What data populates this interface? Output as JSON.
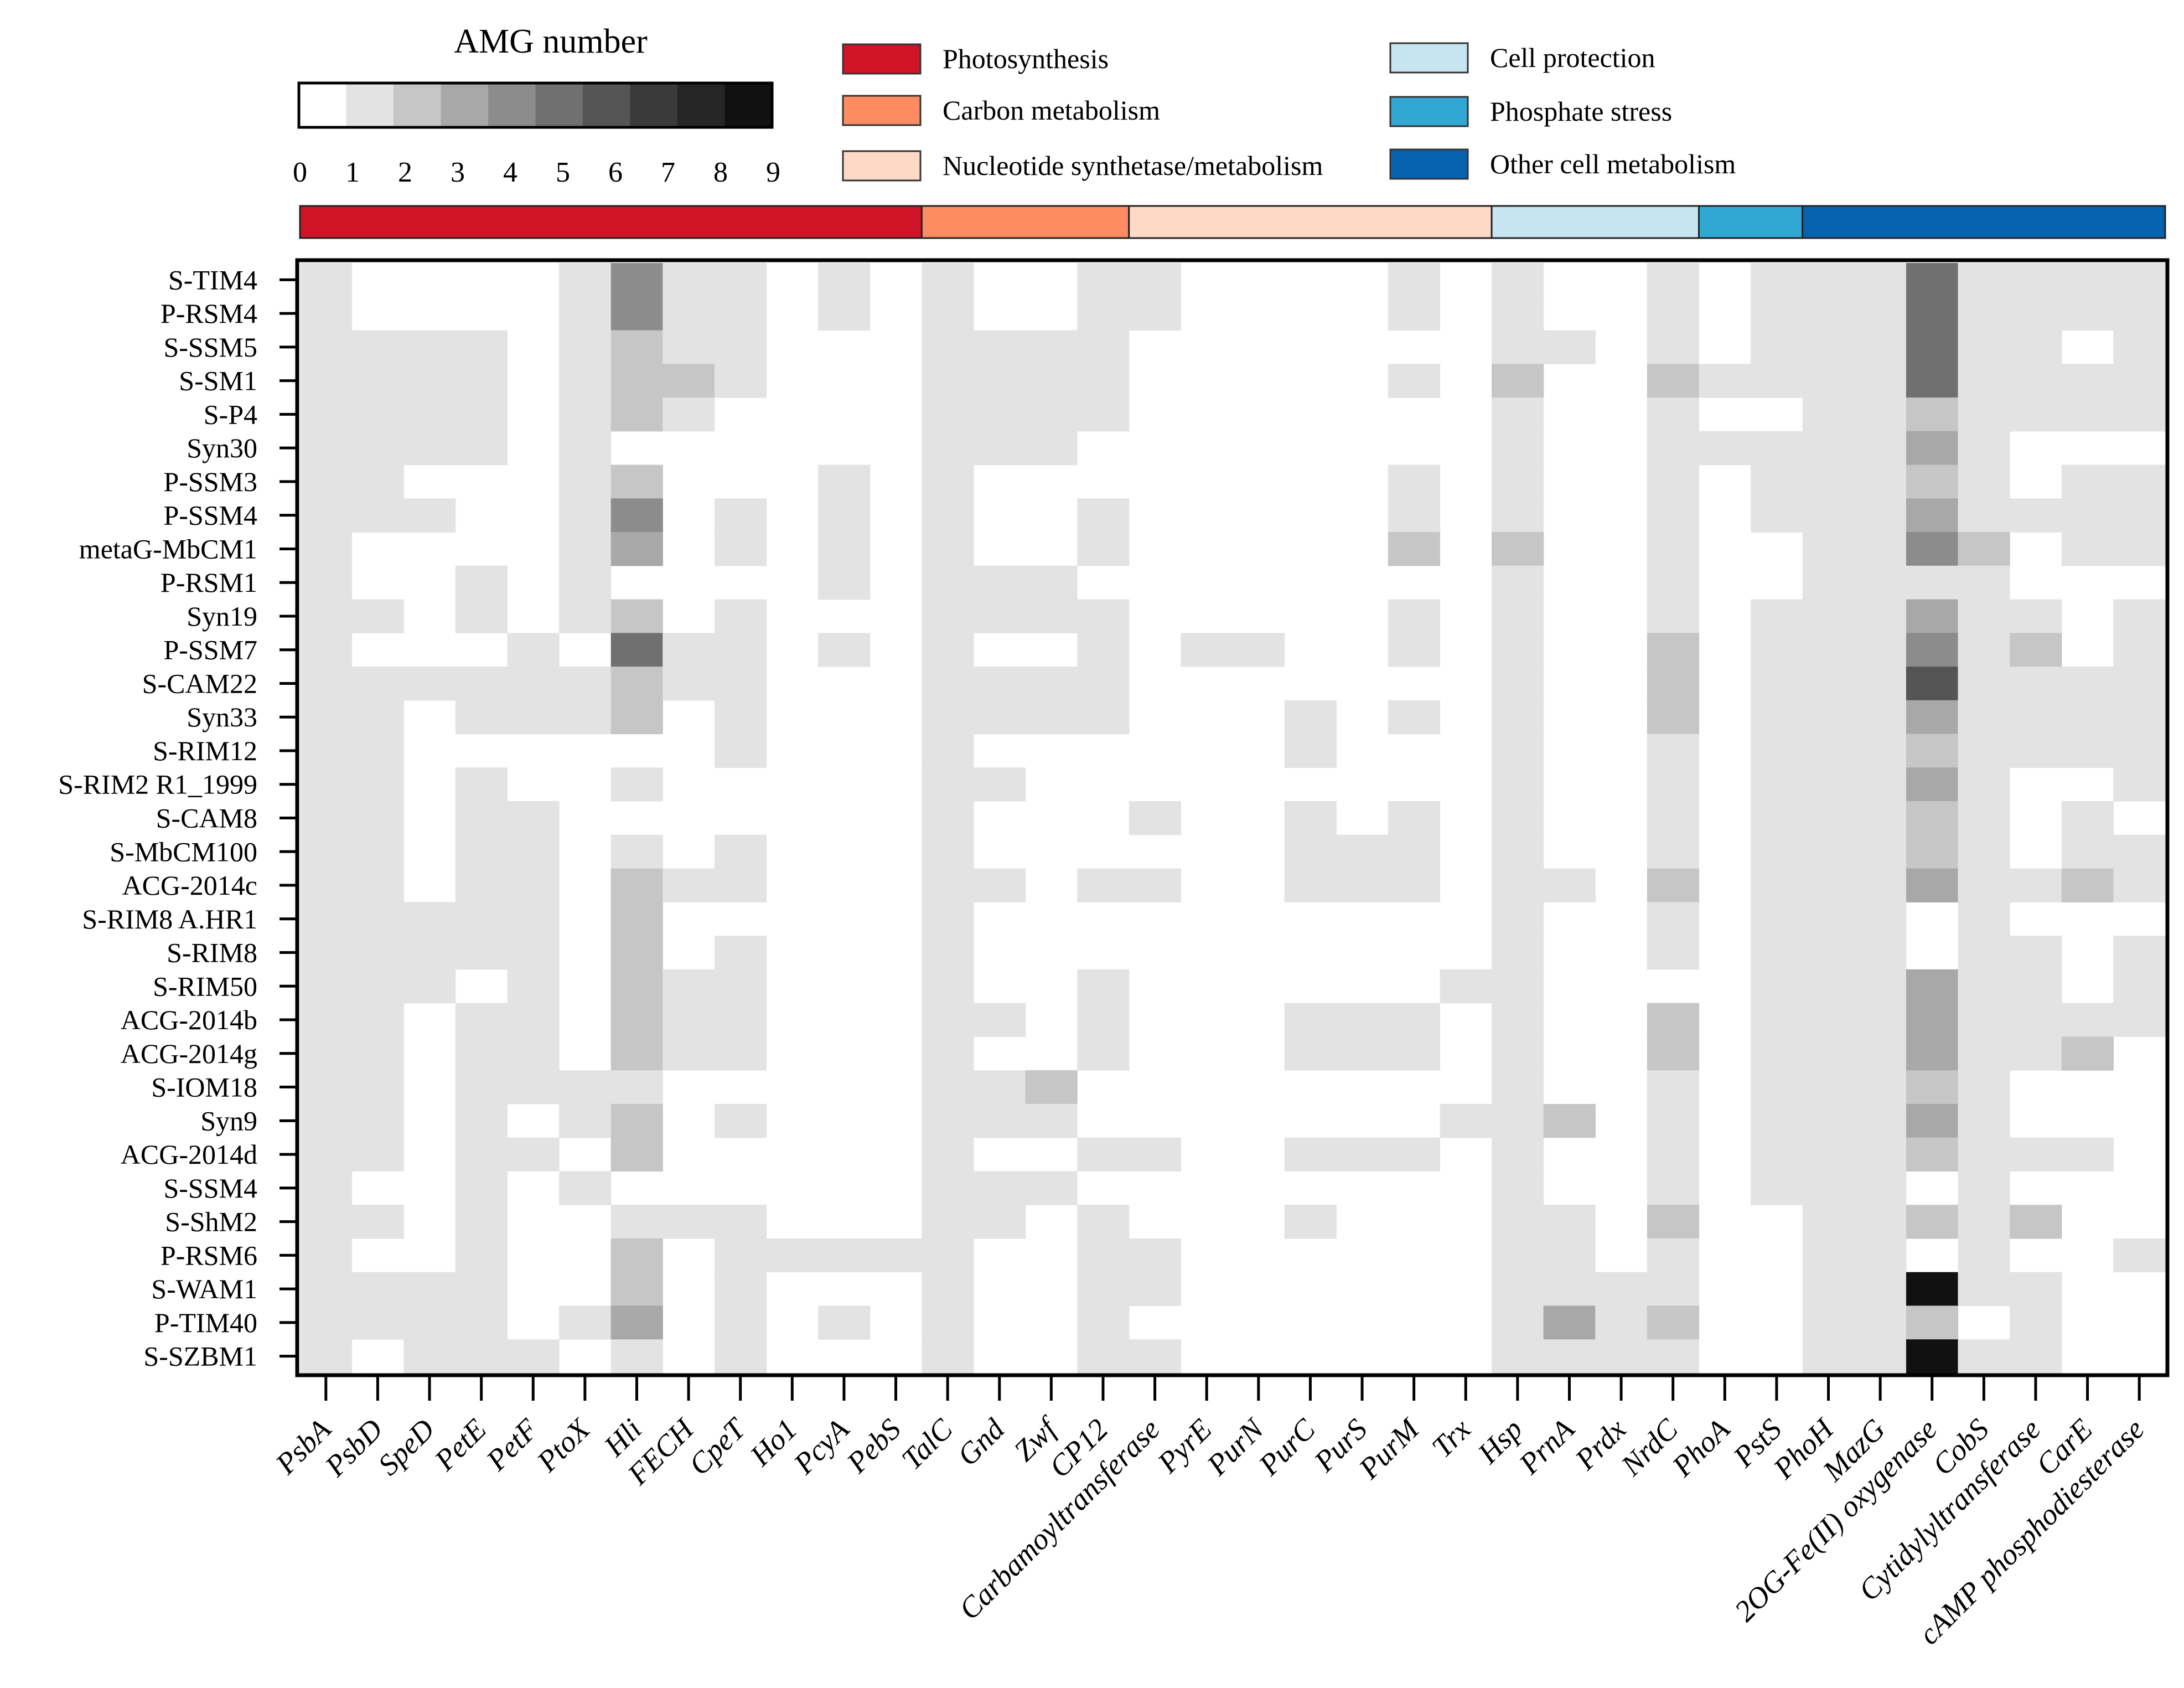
{
  "chart_data": {
    "type": "heatmap",
    "title": "",
    "xlabel": "",
    "ylabel": "",
    "colorbar": {
      "title": "AMG number",
      "ticks": [
        "0",
        "1",
        "2",
        "3",
        "4",
        "5",
        "6",
        "7",
        "8",
        "9"
      ],
      "colors": [
        "#ffffff",
        "#e3e3e3",
        "#c6c6c6",
        "#a8a8a8",
        "#8c8c8c",
        "#707070",
        "#555555",
        "#3a3a3a",
        "#262626",
        "#111111"
      ]
    },
    "legend": [
      {
        "label": "Photosynthesis",
        "color": "#d01428"
      },
      {
        "label": "Carbon metabolism",
        "color": "#fd8c62"
      },
      {
        "label": "Nucleotide synthetase/metabolism",
        "color": "#fddac6"
      },
      {
        "label": "Cell protection",
        "color": "#c6e5f0"
      },
      {
        "label": "Phosphate stress",
        "color": "#31a8d4"
      },
      {
        "label": "Other cell metabolism",
        "color": "#0763b0"
      }
    ],
    "category_bar": [
      {
        "category": "Photosynthesis",
        "color": "#d01428",
        "columns": 12
      },
      {
        "category": "Carbon metabolism",
        "color": "#fd8c62",
        "columns": 4
      },
      {
        "category": "Nucleotide synthetase/metabolism",
        "color": "#fddac6",
        "columns": 7
      },
      {
        "category": "Cell protection",
        "color": "#c6e5f0",
        "columns": 4
      },
      {
        "category": "Phosphate stress",
        "color": "#31a8d4",
        "columns": 2
      },
      {
        "category": "Other cell metabolism",
        "color": "#0763b0",
        "columns": 7
      }
    ],
    "columns": [
      "PsbA",
      "PsbD",
      "SpeD",
      "PetE",
      "PetF",
      "PtoX",
      "Hli",
      "FECH",
      "CpeT",
      "Ho1",
      "PcyA",
      "PebS",
      "TalC",
      "Gnd",
      "Zwf",
      "CP12",
      "Carbamoyltransferase",
      "PyrE",
      "PurN",
      "PurC",
      "PurS",
      "PurM",
      "Trx",
      "Hsp",
      "PrnA",
      "Prdx",
      "NrdC",
      "PhoA",
      "PstS",
      "PhoH",
      "MazG",
      "2OG-Fe(II) oxygenase",
      "CobS",
      "Cytidylyltransferase",
      "CarE",
      "cAMP phosphodiesterase"
    ],
    "rows": [
      "S-TIM4",
      "P-RSM4",
      "S-SSM5",
      "S-SM1",
      "S-P4",
      "Syn30",
      "P-SSM3",
      "P-SSM4",
      "metaG-MbCM1",
      "P-RSM1",
      "Syn19",
      "P-SSM7",
      "S-CAM22",
      "Syn33",
      "S-RIM12",
      "S-RIM2 R1_1999",
      "S-CAM8",
      "S-MbCM100",
      "ACG-2014c",
      "S-RIM8 A.HR1",
      "S-RIM8",
      "S-RIM50",
      "ACG-2014b",
      "ACG-2014g",
      "S-IOM18",
      "Syn9",
      "ACG-2014d",
      "S-SSM4",
      "S-ShM2",
      "P-RSM6",
      "S-WAM1",
      "P-TIM40",
      "S-SZBM1"
    ],
    "values": [
      [
        1,
        0,
        0,
        0,
        0,
        1,
        4,
        1,
        1,
        0,
        1,
        0,
        1,
        0,
        0,
        1,
        1,
        0,
        0,
        0,
        0,
        1,
        0,
        1,
        0,
        0,
        1,
        0,
        1,
        1,
        1,
        5,
        1,
        1,
        1,
        1
      ],
      [
        1,
        0,
        0,
        0,
        0,
        1,
        4,
        1,
        1,
        0,
        1,
        0,
        1,
        0,
        0,
        1,
        1,
        0,
        0,
        0,
        0,
        1,
        0,
        1,
        0,
        0,
        1,
        0,
        1,
        1,
        1,
        5,
        1,
        1,
        1,
        1
      ],
      [
        1,
        1,
        1,
        1,
        0,
        1,
        2,
        1,
        1,
        0,
        0,
        0,
        1,
        1,
        1,
        1,
        0,
        0,
        0,
        0,
        0,
        0,
        0,
        1,
        1,
        0,
        1,
        0,
        1,
        1,
        1,
        5,
        1,
        1,
        0,
        1
      ],
      [
        1,
        1,
        1,
        1,
        0,
        1,
        2,
        2,
        1,
        0,
        0,
        0,
        1,
        1,
        1,
        1,
        0,
        0,
        0,
        0,
        0,
        1,
        0,
        2,
        0,
        0,
        2,
        1,
        1,
        1,
        1,
        5,
        1,
        1,
        1,
        1
      ],
      [
        1,
        1,
        1,
        1,
        0,
        1,
        2,
        1,
        0,
        0,
        0,
        0,
        1,
        1,
        1,
        1,
        0,
        0,
        0,
        0,
        0,
        0,
        0,
        1,
        0,
        0,
        1,
        0,
        0,
        1,
        1,
        2,
        1,
        1,
        1,
        1
      ],
      [
        1,
        1,
        1,
        1,
        0,
        1,
        0,
        0,
        0,
        0,
        0,
        0,
        1,
        1,
        1,
        0,
        0,
        0,
        0,
        0,
        0,
        0,
        0,
        1,
        0,
        0,
        1,
        1,
        1,
        1,
        1,
        3,
        1,
        0,
        0,
        0
      ],
      [
        1,
        1,
        0,
        0,
        0,
        1,
        2,
        0,
        0,
        0,
        1,
        0,
        1,
        0,
        0,
        0,
        0,
        0,
        0,
        0,
        0,
        1,
        0,
        1,
        0,
        0,
        1,
        0,
        1,
        1,
        1,
        2,
        1,
        0,
        1,
        1
      ],
      [
        1,
        1,
        1,
        0,
        0,
        1,
        4,
        0,
        1,
        0,
        1,
        0,
        1,
        0,
        0,
        1,
        0,
        0,
        0,
        0,
        0,
        1,
        0,
        1,
        0,
        0,
        1,
        0,
        1,
        1,
        1,
        3,
        1,
        1,
        1,
        1
      ],
      [
        1,
        0,
        0,
        0,
        0,
        1,
        3,
        0,
        1,
        0,
        1,
        0,
        1,
        0,
        0,
        1,
        0,
        0,
        0,
        0,
        0,
        2,
        0,
        2,
        0,
        0,
        1,
        0,
        0,
        1,
        1,
        4,
        2,
        0,
        1,
        1
      ],
      [
        1,
        0,
        0,
        1,
        0,
        1,
        0,
        0,
        0,
        0,
        1,
        0,
        1,
        1,
        1,
        0,
        0,
        0,
        0,
        0,
        0,
        0,
        0,
        1,
        0,
        0,
        1,
        0,
        0,
        1,
        1,
        1,
        1,
        0,
        0,
        0
      ],
      [
        1,
        1,
        0,
        1,
        0,
        1,
        2,
        0,
        1,
        0,
        0,
        0,
        1,
        1,
        1,
        1,
        0,
        0,
        0,
        0,
        0,
        1,
        0,
        1,
        0,
        0,
        1,
        0,
        1,
        1,
        1,
        3,
        1,
        1,
        0,
        1
      ],
      [
        1,
        0,
        0,
        0,
        1,
        0,
        5,
        1,
        1,
        0,
        1,
        0,
        1,
        0,
        0,
        1,
        0,
        1,
        1,
        0,
        0,
        1,
        0,
        1,
        0,
        0,
        2,
        0,
        1,
        1,
        1,
        4,
        1,
        2,
        0,
        1
      ],
      [
        1,
        1,
        1,
        1,
        1,
        1,
        2,
        1,
        1,
        0,
        0,
        0,
        1,
        1,
        1,
        1,
        0,
        0,
        0,
        0,
        0,
        0,
        0,
        1,
        0,
        0,
        2,
        0,
        1,
        1,
        1,
        6,
        1,
        1,
        1,
        1
      ],
      [
        1,
        1,
        0,
        1,
        1,
        1,
        2,
        0,
        1,
        0,
        0,
        0,
        1,
        1,
        1,
        1,
        0,
        0,
        0,
        1,
        0,
        1,
        0,
        1,
        0,
        0,
        2,
        0,
        1,
        1,
        1,
        3,
        1,
        1,
        1,
        1
      ],
      [
        1,
        1,
        0,
        0,
        0,
        0,
        0,
        0,
        1,
        0,
        0,
        0,
        1,
        0,
        0,
        0,
        0,
        0,
        0,
        1,
        0,
        0,
        0,
        1,
        0,
        0,
        1,
        0,
        1,
        1,
        1,
        2,
        1,
        1,
        1,
        1
      ],
      [
        1,
        1,
        0,
        1,
        0,
        0,
        1,
        0,
        0,
        0,
        0,
        0,
        1,
        1,
        0,
        0,
        0,
        0,
        0,
        0,
        0,
        0,
        0,
        1,
        0,
        0,
        1,
        0,
        1,
        1,
        1,
        3,
        1,
        0,
        0,
        1
      ],
      [
        1,
        1,
        0,
        1,
        1,
        0,
        0,
        0,
        0,
        0,
        0,
        0,
        1,
        0,
        0,
        0,
        1,
        0,
        0,
        1,
        0,
        1,
        0,
        1,
        0,
        0,
        1,
        0,
        1,
        1,
        1,
        2,
        1,
        0,
        1,
        0
      ],
      [
        1,
        1,
        0,
        1,
        1,
        0,
        1,
        0,
        1,
        0,
        0,
        0,
        1,
        0,
        0,
        0,
        0,
        0,
        0,
        1,
        1,
        1,
        0,
        1,
        0,
        0,
        1,
        0,
        1,
        1,
        1,
        2,
        1,
        0,
        1,
        1
      ],
      [
        1,
        1,
        0,
        1,
        1,
        0,
        2,
        1,
        1,
        0,
        0,
        0,
        1,
        1,
        0,
        1,
        1,
        0,
        0,
        1,
        1,
        1,
        0,
        1,
        1,
        0,
        2,
        0,
        1,
        1,
        1,
        3,
        1,
        1,
        2,
        1
      ],
      [
        1,
        1,
        1,
        1,
        1,
        0,
        2,
        0,
        0,
        0,
        0,
        0,
        1,
        0,
        0,
        0,
        0,
        0,
        0,
        0,
        0,
        0,
        0,
        1,
        0,
        0,
        1,
        0,
        1,
        1,
        1,
        0,
        1,
        0,
        0,
        0
      ],
      [
        1,
        1,
        1,
        1,
        1,
        0,
        2,
        0,
        1,
        0,
        0,
        0,
        1,
        0,
        0,
        0,
        0,
        0,
        0,
        0,
        0,
        0,
        0,
        1,
        0,
        0,
        1,
        0,
        1,
        1,
        1,
        0,
        1,
        1,
        0,
        1
      ],
      [
        1,
        1,
        1,
        0,
        1,
        0,
        2,
        1,
        1,
        0,
        0,
        0,
        1,
        0,
        0,
        1,
        0,
        0,
        0,
        0,
        0,
        0,
        1,
        1,
        0,
        0,
        0,
        0,
        1,
        1,
        1,
        3,
        1,
        1,
        0,
        1
      ],
      [
        1,
        1,
        0,
        1,
        1,
        0,
        2,
        1,
        1,
        0,
        0,
        0,
        1,
        1,
        0,
        1,
        0,
        0,
        0,
        1,
        1,
        1,
        0,
        1,
        0,
        0,
        2,
        0,
        1,
        1,
        1,
        3,
        1,
        1,
        1,
        1
      ],
      [
        1,
        1,
        0,
        1,
        1,
        0,
        2,
        1,
        1,
        0,
        0,
        0,
        1,
        0,
        0,
        1,
        0,
        0,
        0,
        1,
        1,
        1,
        0,
        1,
        0,
        0,
        2,
        0,
        1,
        1,
        1,
        3,
        1,
        1,
        2,
        0
      ],
      [
        1,
        1,
        0,
        1,
        1,
        1,
        1,
        0,
        0,
        0,
        0,
        0,
        1,
        1,
        2,
        0,
        0,
        0,
        0,
        0,
        0,
        0,
        0,
        1,
        0,
        0,
        1,
        0,
        1,
        1,
        1,
        2,
        1,
        0,
        0,
        0
      ],
      [
        1,
        1,
        0,
        1,
        0,
        1,
        2,
        0,
        1,
        0,
        0,
        0,
        1,
        1,
        1,
        0,
        0,
        0,
        0,
        0,
        0,
        0,
        1,
        1,
        2,
        0,
        1,
        0,
        1,
        1,
        1,
        3,
        1,
        0,
        0,
        0
      ],
      [
        1,
        1,
        0,
        1,
        1,
        0,
        2,
        0,
        0,
        0,
        0,
        0,
        1,
        0,
        0,
        1,
        1,
        0,
        0,
        1,
        1,
        1,
        0,
        1,
        0,
        0,
        1,
        0,
        1,
        1,
        1,
        2,
        1,
        1,
        1,
        0
      ],
      [
        1,
        0,
        0,
        1,
        0,
        1,
        0,
        0,
        0,
        0,
        0,
        0,
        1,
        1,
        1,
        0,
        0,
        0,
        0,
        0,
        0,
        0,
        0,
        1,
        0,
        0,
        1,
        0,
        1,
        1,
        1,
        0,
        1,
        0,
        0,
        0
      ],
      [
        1,
        1,
        0,
        1,
        0,
        0,
        1,
        1,
        1,
        0,
        0,
        0,
        1,
        1,
        0,
        1,
        0,
        0,
        0,
        1,
        0,
        0,
        0,
        1,
        1,
        0,
        2,
        0,
        0,
        1,
        1,
        2,
        1,
        2,
        0,
        0
      ],
      [
        1,
        0,
        0,
        1,
        0,
        0,
        2,
        0,
        1,
        1,
        1,
        1,
        1,
        0,
        0,
        1,
        1,
        0,
        0,
        0,
        0,
        0,
        0,
        1,
        1,
        0,
        1,
        0,
        0,
        1,
        1,
        0,
        1,
        0,
        0,
        1
      ],
      [
        1,
        1,
        1,
        1,
        0,
        0,
        2,
        0,
        1,
        0,
        0,
        0,
        1,
        0,
        0,
        1,
        1,
        0,
        0,
        0,
        0,
        0,
        0,
        1,
        1,
        1,
        1,
        0,
        0,
        1,
        1,
        9,
        1,
        1,
        0,
        0
      ],
      [
        1,
        1,
        1,
        1,
        0,
        1,
        3,
        0,
        1,
        0,
        1,
        0,
        1,
        0,
        0,
        1,
        0,
        0,
        0,
        0,
        0,
        0,
        0,
        1,
        3,
        1,
        2,
        0,
        0,
        1,
        1,
        2,
        0,
        1,
        0,
        0
      ],
      [
        1,
        0,
        1,
        1,
        1,
        0,
        1,
        0,
        1,
        0,
        0,
        0,
        1,
        0,
        0,
        1,
        1,
        0,
        0,
        0,
        0,
        0,
        0,
        1,
        1,
        1,
        1,
        0,
        0,
        1,
        1,
        9,
        1,
        1,
        0,
        0
      ]
    ]
  }
}
